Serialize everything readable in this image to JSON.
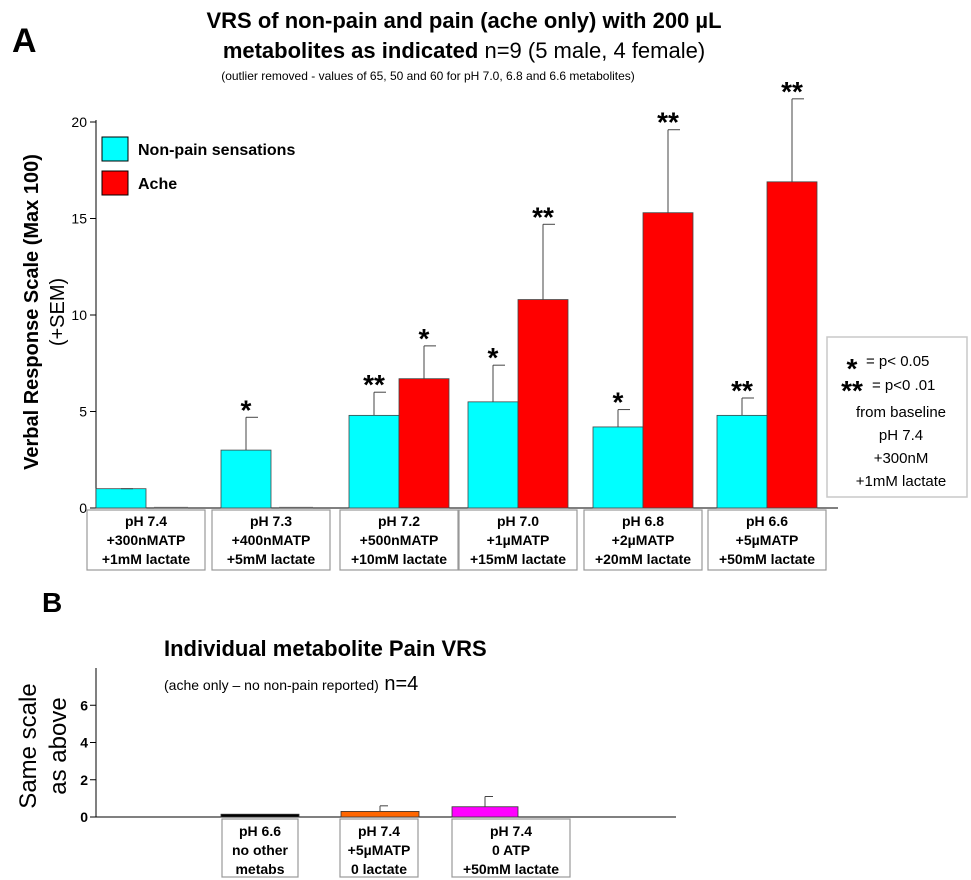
{
  "chart_data": [
    {
      "type": "bar",
      "panel_label": "A",
      "title_line1": "VRS of non-pain and pain (ache only) with 200 µL",
      "title_line2_bold": "metabolites as indicated",
      "title_line2_normal": " n=9 (5 male, 4 female)",
      "subtitle": "(outlier removed - values of 65, 50 and 60 for pH 7.0, 6.8 and 6.6 metabolites)",
      "ylabel_line1": "Verbal Response Scale (Max 100)",
      "ylabel_line2": "(+SEM)",
      "ylim": [
        0,
        20
      ],
      "yticks": [
        "0",
        "5",
        "10",
        "15",
        "20"
      ],
      "categories": [
        [
          "pH 7.4",
          "+300nMATP",
          "+1mM lactate"
        ],
        [
          "pH 7.3",
          "+400nMATP",
          "+5mM lactate"
        ],
        [
          "pH 7.2",
          "+500nMATP",
          "+10mM lactate"
        ],
        [
          "pH 7.0",
          "+1µMATP",
          "+15mM lactate"
        ],
        [
          "pH 6.8",
          "+2µMATP",
          "+20mM lactate"
        ],
        [
          "pH 6.6",
          "+5µMATP",
          "+50mM lactate"
        ]
      ],
      "series": [
        {
          "name": "Non-pain sensations",
          "color": "#00ffff",
          "values": [
            1.0,
            3.0,
            4.8,
            5.5,
            4.2,
            4.8
          ],
          "errors": [
            0.0,
            1.7,
            1.2,
            1.9,
            0.9,
            0.9
          ],
          "significance": [
            "",
            "*",
            "**",
            "*",
            "*",
            "**"
          ]
        },
        {
          "name": "Ache",
          "color": "#ff0000",
          "values": [
            0.0,
            0.0,
            6.7,
            10.8,
            15.3,
            16.9
          ],
          "errors": [
            0.0,
            0.0,
            1.7,
            3.9,
            4.3,
            4.3
          ],
          "significance": [
            "",
            "",
            "*",
            "**",
            "**",
            "**"
          ]
        }
      ],
      "legend_placement": "top-left",
      "significance_key": {
        "single_star": "*",
        "single_text": "= p< 0.05",
        "double_star": "**",
        "double_text": "= p<0 .01",
        "note_lines": [
          "from baseline",
          "pH 7.4",
          "+300nM",
          "+1mM lactate"
        ]
      }
    },
    {
      "type": "bar",
      "panel_label": "B",
      "title": "Individual metabolite Pain VRS",
      "subtitle_small": "(ache only – no non-pain reported)",
      "subtitle_n": " n=4",
      "ylabel_line1": "Same scale",
      "ylabel_line2": "as above",
      "ylim": [
        0,
        8
      ],
      "yticks": [
        "0",
        "2",
        "4",
        "6"
      ],
      "categories": [
        [
          "pH 6.6",
          "no other",
          "metabs"
        ],
        [
          "pH 7.4",
          "+5µMATP",
          "0 lactate"
        ],
        [
          "pH 7.4",
          "0 ATP",
          "+50mM lactate"
        ]
      ],
      "values": [
        0.15,
        0.3,
        0.55
      ],
      "errors": [
        0.0,
        0.3,
        0.55
      ],
      "colors": [
        "#000000",
        "#ff6600",
        "#ff00ff"
      ]
    }
  ]
}
